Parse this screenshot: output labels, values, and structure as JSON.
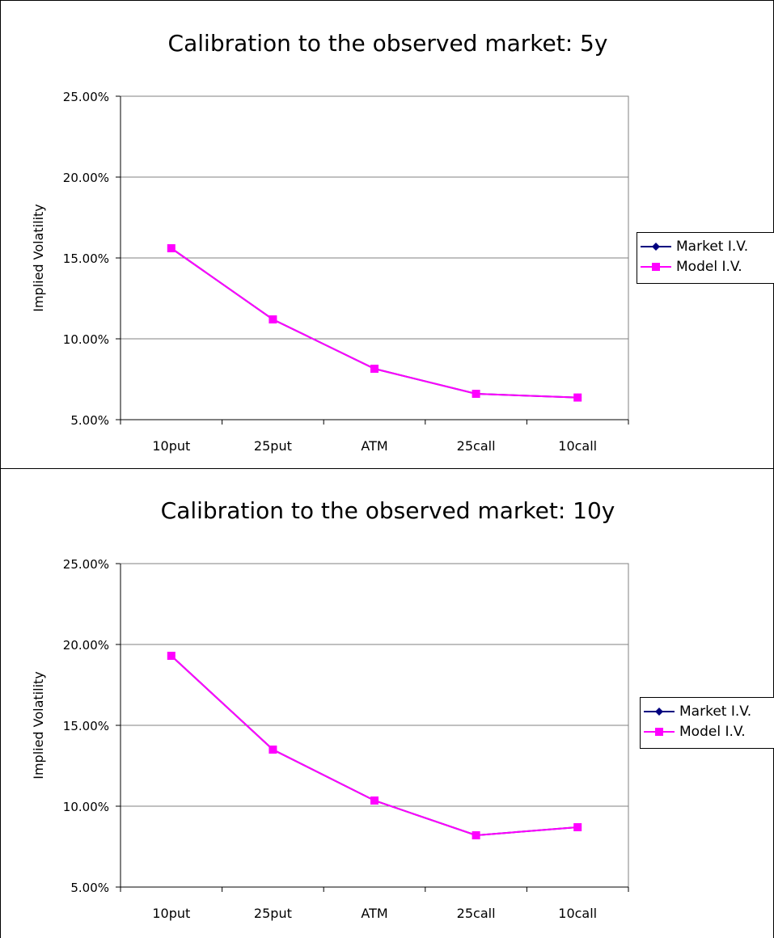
{
  "chart_data": [
    {
      "type": "line",
      "title": "Calibration to the observed market: 5y",
      "xlabel": "",
      "ylabel": "Implied Volatility",
      "categories": [
        "10put",
        "25put",
        "ATM",
        "25call",
        "10call"
      ],
      "ylim": [
        0.05,
        0.25
      ],
      "yticks": [
        "5.00%",
        "10.00%",
        "15.00%",
        "20.00%",
        "25.00%"
      ],
      "grid": "horizontal",
      "legend_position": "right",
      "series": [
        {
          "name": "Market I.V.",
          "color": "#000080",
          "marker": "diamond",
          "values": [
            0.156,
            0.112,
            0.0815,
            0.066,
            0.0637
          ]
        },
        {
          "name": "Model I.V.",
          "color": "#FF00FF",
          "marker": "square",
          "values": [
            0.156,
            0.112,
            0.0815,
            0.066,
            0.0637
          ]
        }
      ]
    },
    {
      "type": "line",
      "title": "Calibration to the observed market: 10y",
      "xlabel": "",
      "ylabel": "Implied Volatility",
      "categories": [
        "10put",
        "25put",
        "ATM",
        "25call",
        "10call"
      ],
      "ylim": [
        0.05,
        0.25
      ],
      "yticks": [
        "5.00%",
        "10.00%",
        "15.00%",
        "20.00%",
        "25.00%"
      ],
      "grid": "horizontal",
      "legend_position": "right",
      "series": [
        {
          "name": "Market I.V.",
          "color": "#000080",
          "marker": "diamond",
          "values": [
            0.193,
            0.135,
            0.1035,
            0.082,
            0.087
          ]
        },
        {
          "name": "Model I.V.",
          "color": "#FF00FF",
          "marker": "square",
          "values": [
            0.193,
            0.135,
            0.1035,
            0.082,
            0.087
          ]
        }
      ]
    }
  ]
}
